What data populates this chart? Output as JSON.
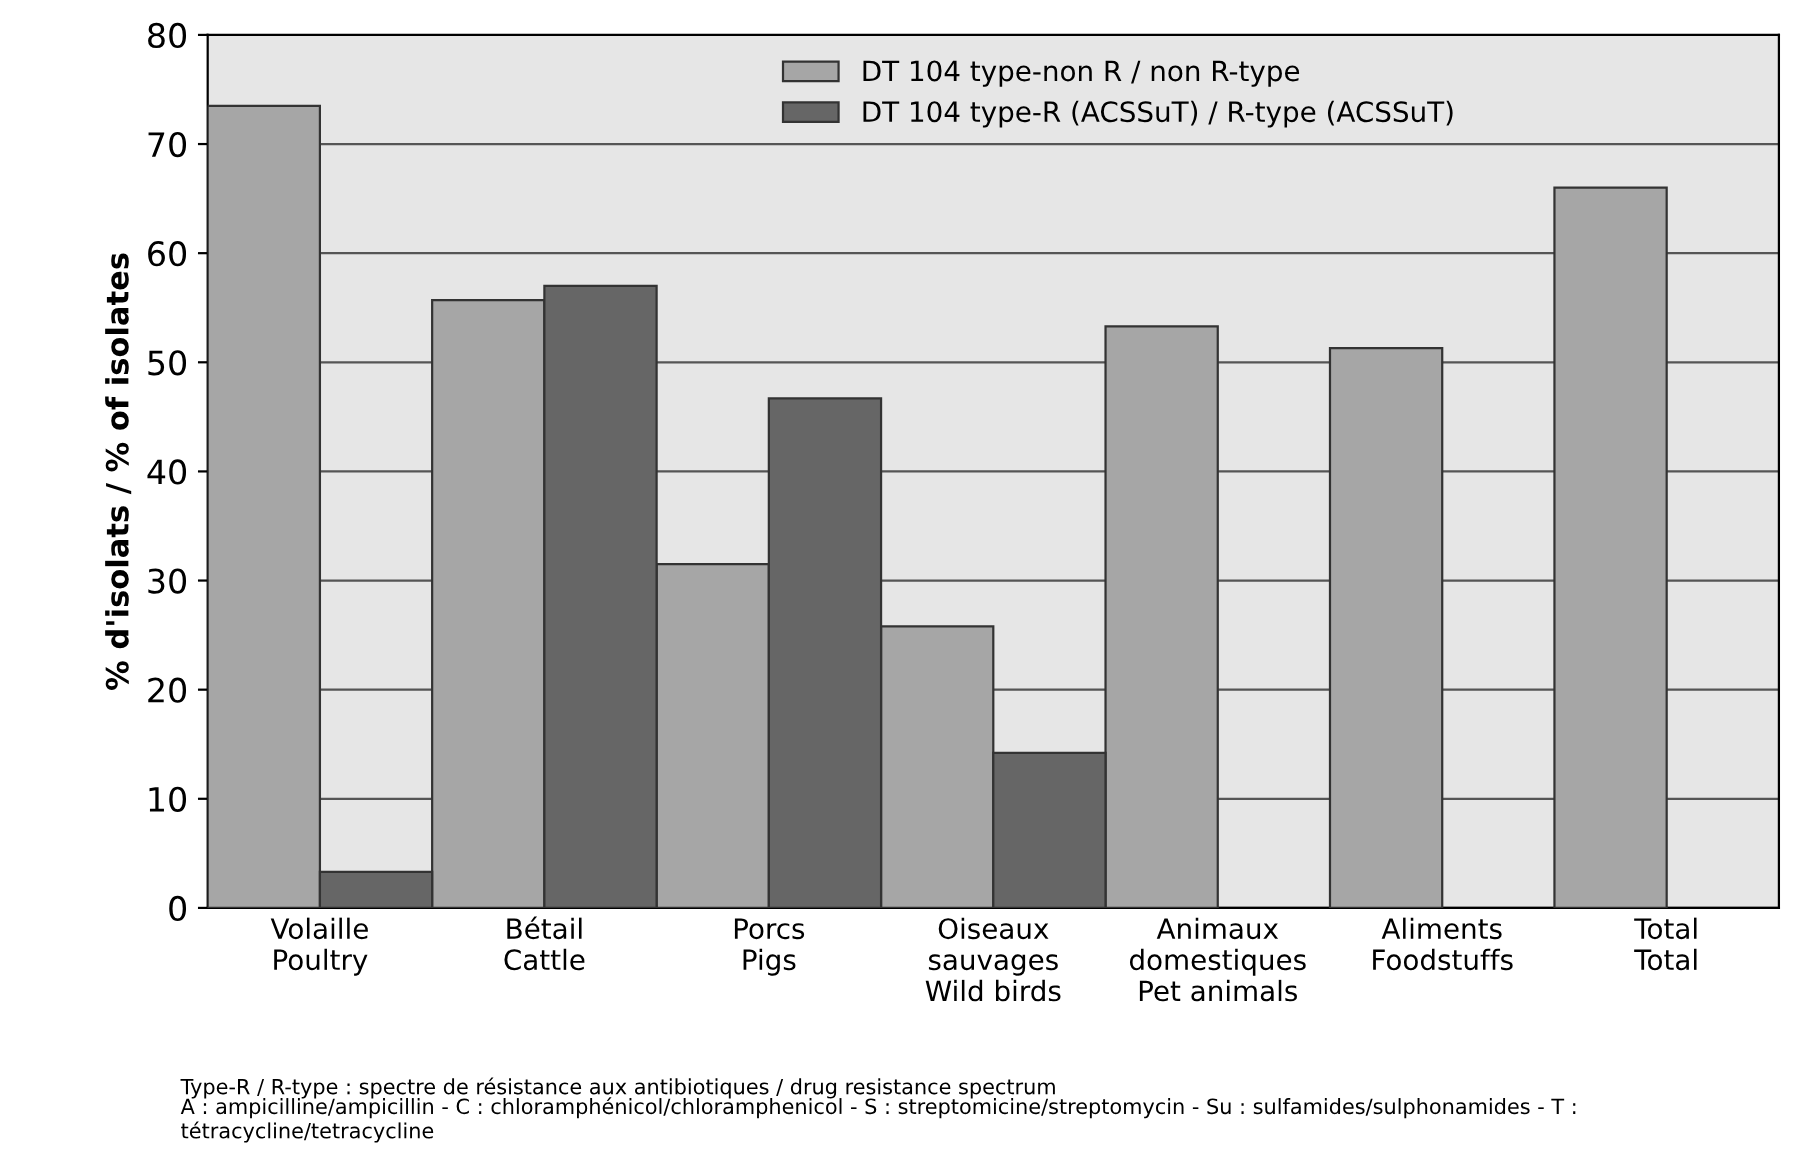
{
  "chart_data": {
    "type": "bar",
    "ylabel": "% d'isolats / % of isolates",
    "categories": [
      "Volaille\nPoultry",
      "Bétail\nCattle",
      "Porcs\nPigs",
      "Oiseaux\nsauvages\nWild birds",
      "Animaux\ndomestiques\nPet animals",
      "Aliments\nFoodstuffs",
      "Total\nTotal"
    ],
    "series": [
      {
        "name": "DT 104 type-non R / non R-type",
        "color": "#a6a6a6",
        "values": [
          73.5,
          55.7,
          31.5,
          25.8,
          53.3,
          51.3,
          66.0
        ]
      },
      {
        "name": "DT 104 type-R (ACSSuT) / R-type (ACSSuT)",
        "color": "#666666",
        "values": [
          3.3,
          57.0,
          46.7,
          14.2,
          null,
          null,
          null
        ]
      }
    ],
    "ylim": [
      0,
      80
    ],
    "yticks": [
      0,
      10,
      20,
      30,
      40,
      50,
      60,
      70,
      80
    ],
    "grid": "y",
    "legend": "top",
    "annotations": [
      "Type-R / R-type : spectre de résistance aux antibiotiques / drug resistance spectrum",
      "A : ampicilline/ampicillin - C : chloramphénicol/chloramphenicol - S : streptomicine/streptomycin - Su : sulfamides/sulphonamides - T : tétracycline/tetracycline"
    ]
  }
}
